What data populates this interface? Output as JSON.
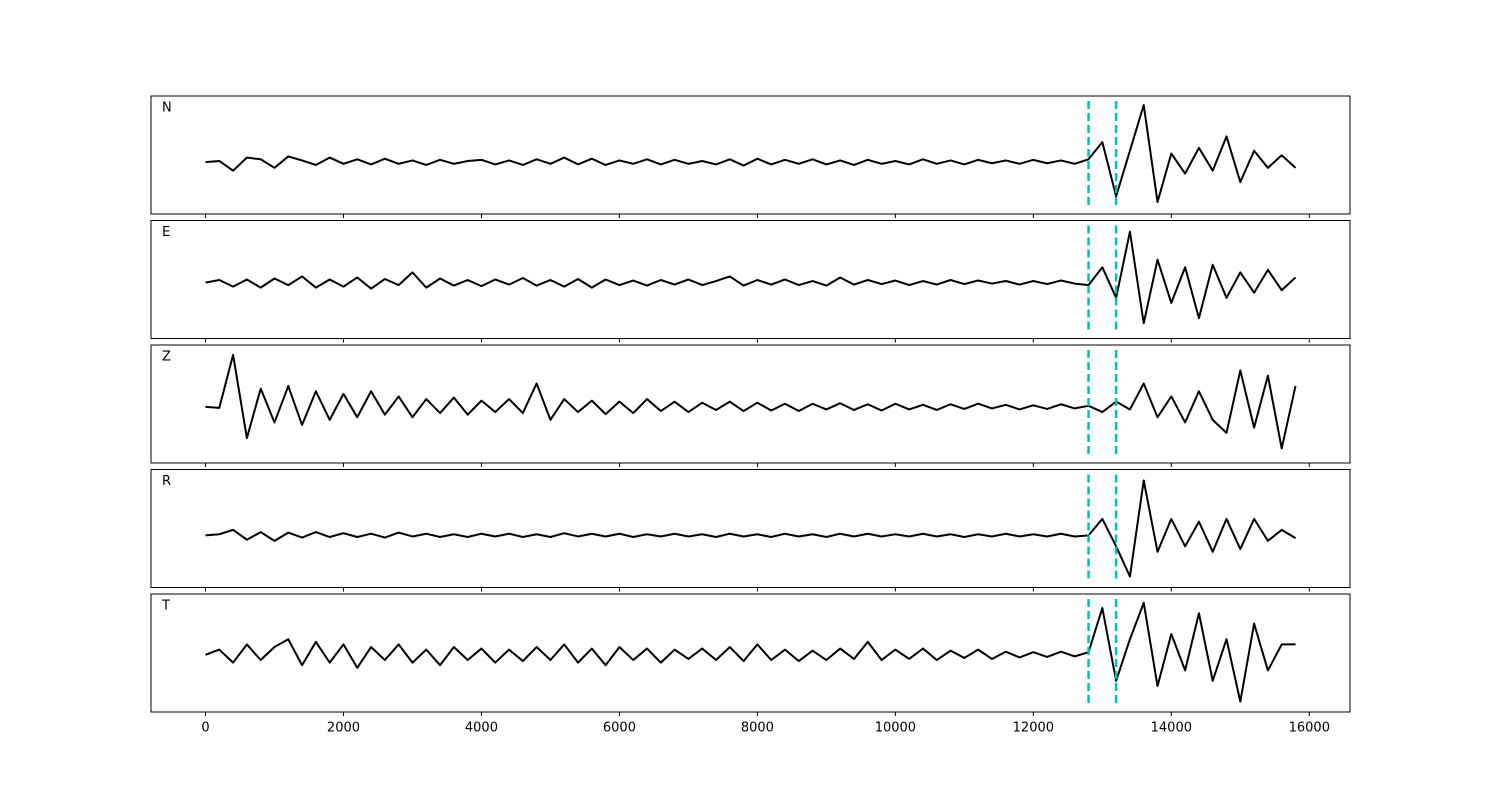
{
  "chart_data": [
    {
      "type": "line",
      "label": "N",
      "color": "#000000",
      "vline_color": "#00bfbf",
      "vlines": [
        12800,
        13200
      ],
      "xlim": [
        -790,
        16590
      ],
      "ylim": [
        -0.91,
        1.16
      ],
      "xticks": [
        0,
        2000,
        4000,
        6000,
        8000,
        10000,
        12000,
        14000,
        16000
      ],
      "x": [
        0,
        200,
        400,
        600,
        800,
        1000,
        1200,
        1400,
        1600,
        1800,
        2000,
        2200,
        2400,
        2600,
        2800,
        3000,
        3200,
        3400,
        3600,
        3800,
        4000,
        4200,
        4400,
        4600,
        4800,
        5000,
        5200,
        5400,
        5600,
        5800,
        6000,
        6200,
        6400,
        6600,
        6800,
        7000,
        7200,
        7400,
        7600,
        7800,
        8000,
        8200,
        8400,
        8600,
        8800,
        9000,
        9200,
        9400,
        9600,
        9800,
        10000,
        10200,
        10400,
        10600,
        10800,
        11000,
        11200,
        11400,
        11600,
        11800,
        12000,
        12200,
        12400,
        12600,
        12800,
        13000,
        13200,
        13400,
        13600,
        13800,
        14000,
        14200,
        14400,
        14600,
        14800,
        15000,
        15200,
        15400,
        15600,
        15800
      ],
      "values": [
        0,
        0.02,
        -0.15,
        0.08,
        0.05,
        -0.1,
        0.1,
        0.03,
        -0.05,
        0.08,
        -0.03,
        0.05,
        -0.04,
        0.06,
        -0.03,
        0.03,
        -0.05,
        0.04,
        -0.03,
        0.02,
        0.04,
        -0.04,
        0.03,
        -0.05,
        0.05,
        -0.03,
        0.08,
        -0.04,
        0.06,
        -0.05,
        0.03,
        -0.03,
        0.05,
        -0.04,
        0.04,
        -0.03,
        0.02,
        -0.04,
        0.05,
        -0.06,
        0.06,
        -0.04,
        0.04,
        -0.03,
        0.05,
        -0.04,
        0.03,
        -0.05,
        0.04,
        -0.03,
        0.02,
        -0.04,
        0.05,
        -0.03,
        0.03,
        -0.04,
        0.04,
        -0.02,
        0.03,
        -0.03,
        0.04,
        -0.02,
        0.03,
        -0.03,
        0.05,
        0.35,
        -0.6,
        0.2,
        1.0,
        -0.7,
        0.15,
        -0.2,
        0.25,
        -0.15,
        0.45,
        -0.35,
        0.2,
        -0.1,
        0.12,
        -0.1
      ]
    },
    {
      "type": "line",
      "label": "E",
      "color": "#000000",
      "vline_color": "#00bfbf",
      "vlines": [
        12800,
        13200
      ],
      "xlim": [
        -790,
        16590
      ],
      "ylim": [
        -1.1,
        1.22
      ],
      "xticks": [
        0,
        2000,
        4000,
        6000,
        8000,
        10000,
        12000,
        14000,
        16000
      ],
      "x": [
        0,
        200,
        400,
        600,
        800,
        1000,
        1200,
        1400,
        1600,
        1800,
        2000,
        2200,
        2400,
        2600,
        2800,
        3000,
        3200,
        3400,
        3600,
        3800,
        4000,
        4200,
        4400,
        4600,
        4800,
        5000,
        5200,
        5400,
        5600,
        5800,
        6000,
        6200,
        6400,
        6600,
        6800,
        7000,
        7200,
        7400,
        7600,
        7800,
        8000,
        8200,
        8400,
        8600,
        8800,
        9000,
        9200,
        9400,
        9600,
        9800,
        10000,
        10200,
        10400,
        10600,
        10800,
        11000,
        11200,
        11400,
        11600,
        11800,
        12000,
        12200,
        12400,
        12600,
        12800,
        13000,
        13200,
        13400,
        13600,
        13800,
        14000,
        14200,
        14400,
        14600,
        14800,
        15000,
        15200,
        15400,
        15600,
        15800
      ],
      "values": [
        0,
        0.05,
        -0.08,
        0.06,
        -0.1,
        0.08,
        -0.05,
        0.12,
        -0.1,
        0.06,
        -0.08,
        0.1,
        -0.12,
        0.07,
        -0.05,
        0.2,
        -0.1,
        0.08,
        -0.06,
        0.05,
        -0.07,
        0.06,
        -0.04,
        0.09,
        -0.06,
        0.05,
        -0.08,
        0.07,
        -0.1,
        0.06,
        -0.05,
        0.04,
        -0.06,
        0.05,
        -0.04,
        0.06,
        -0.05,
        0.03,
        0.12,
        -0.06,
        0.05,
        -0.04,
        0.06,
        -0.05,
        0.03,
        -0.06,
        0.1,
        -0.04,
        0.05,
        -0.03,
        0.04,
        -0.05,
        0.03,
        -0.04,
        0.05,
        -0.03,
        0.04,
        -0.02,
        0.03,
        -0.04,
        0.03,
        -0.03,
        0.04,
        -0.02,
        -0.05,
        0.3,
        -0.3,
        1.0,
        -0.8,
        0.45,
        -0.4,
        0.3,
        -0.7,
        0.35,
        -0.3,
        0.2,
        -0.2,
        0.25,
        -0.15,
        0.1
      ]
    },
    {
      "type": "line",
      "label": "Z",
      "color": "#000000",
      "vline_color": "#00bfbf",
      "vlines": [
        12800,
        13200
      ],
      "xlim": [
        -790,
        16590
      ],
      "ylim": [
        -1.08,
        1.19
      ],
      "xticks": [
        0,
        2000,
        4000,
        6000,
        8000,
        10000,
        12000,
        14000,
        16000
      ],
      "x": [
        0,
        200,
        400,
        600,
        800,
        1000,
        1200,
        1400,
        1600,
        1800,
        2000,
        2200,
        2400,
        2600,
        2800,
        3000,
        3200,
        3400,
        3600,
        3800,
        4000,
        4200,
        4400,
        4600,
        4800,
        5000,
        5200,
        5400,
        5600,
        5800,
        6000,
        6200,
        6400,
        6600,
        6800,
        7000,
        7200,
        7400,
        7600,
        7800,
        8000,
        8200,
        8400,
        8600,
        8800,
        9000,
        9200,
        9400,
        9600,
        9800,
        10000,
        10200,
        10400,
        10600,
        10800,
        11000,
        11200,
        11400,
        11600,
        11800,
        12000,
        12200,
        12400,
        12600,
        12800,
        13000,
        13200,
        13400,
        13600,
        13800,
        14000,
        14200,
        14400,
        14600,
        14800,
        15000,
        15200,
        15400,
        15600,
        15800
      ],
      "values": [
        0,
        -0.02,
        1.0,
        -0.6,
        0.35,
        -0.3,
        0.4,
        -0.35,
        0.3,
        -0.25,
        0.25,
        -0.2,
        0.3,
        -0.15,
        0.2,
        -0.2,
        0.15,
        -0.12,
        0.18,
        -0.15,
        0.12,
        -0.1,
        0.15,
        -0.12,
        0.45,
        -0.25,
        0.15,
        -0.1,
        0.12,
        -0.14,
        0.1,
        -0.12,
        0.15,
        -0.08,
        0.1,
        -0.1,
        0.08,
        -0.06,
        0.1,
        -0.08,
        0.08,
        -0.07,
        0.06,
        -0.08,
        0.06,
        -0.05,
        0.07,
        -0.06,
        0.05,
        -0.07,
        0.06,
        -0.05,
        0.04,
        -0.06,
        0.05,
        -0.04,
        0.06,
        -0.03,
        0.04,
        -0.05,
        0.03,
        -0.04,
        0.05,
        -0.03,
        0.02,
        -0.1,
        0.1,
        -0.05,
        0.45,
        -0.2,
        0.2,
        -0.3,
        0.3,
        -0.25,
        -0.5,
        0.7,
        -0.4,
        0.6,
        -0.8,
        0.4
      ]
    },
    {
      "type": "line",
      "label": "R",
      "color": "#000000",
      "vline_color": "#00bfbf",
      "vlines": [
        12800,
        13200
      ],
      "xlim": [
        -790,
        16590
      ],
      "ylim": [
        -0.95,
        1.2
      ],
      "xticks": [
        0,
        2000,
        4000,
        6000,
        8000,
        10000,
        12000,
        14000,
        16000
      ],
      "x": [
        0,
        200,
        400,
        600,
        800,
        1000,
        1200,
        1400,
        1600,
        1800,
        2000,
        2200,
        2400,
        2600,
        2800,
        3000,
        3200,
        3400,
        3600,
        3800,
        4000,
        4200,
        4400,
        4600,
        4800,
        5000,
        5200,
        5400,
        5600,
        5800,
        6000,
        6200,
        6400,
        6600,
        6800,
        7000,
        7200,
        7400,
        7600,
        7800,
        8000,
        8200,
        8400,
        8600,
        8800,
        9000,
        9200,
        9400,
        9600,
        9800,
        10000,
        10200,
        10400,
        10600,
        10800,
        11000,
        11200,
        11400,
        11600,
        11800,
        12000,
        12200,
        12400,
        12600,
        12800,
        13000,
        13200,
        13400,
        13600,
        13800,
        14000,
        14200,
        14400,
        14600,
        14800,
        15000,
        15200,
        15400,
        15600,
        15800
      ],
      "values": [
        0,
        0.02,
        0.1,
        -0.08,
        0.06,
        -0.1,
        0.05,
        -0.04,
        0.06,
        -0.03,
        0.04,
        -0.03,
        0.03,
        -0.04,
        0.05,
        -0.02,
        0.03,
        -0.03,
        0.02,
        -0.03,
        0.03,
        -0.02,
        0.03,
        -0.03,
        0.02,
        -0.03,
        0.04,
        -0.02,
        0.03,
        -0.02,
        0.03,
        -0.03,
        0.02,
        -0.02,
        0.03,
        -0.02,
        0.02,
        -0.03,
        0.03,
        -0.02,
        0.02,
        -0.03,
        0.03,
        -0.02,
        0.02,
        -0.03,
        0.03,
        -0.02,
        0.03,
        -0.02,
        0.02,
        -0.02,
        0.03,
        -0.02,
        0.02,
        -0.03,
        0.02,
        -0.02,
        0.03,
        -0.02,
        0.02,
        -0.02,
        0.03,
        -0.02,
        0,
        0.3,
        -0.2,
        -0.75,
        1.0,
        -0.3,
        0.3,
        -0.2,
        0.25,
        -0.3,
        0.3,
        -0.25,
        0.3,
        -0.1,
        0.1,
        -0.05
      ]
    },
    {
      "type": "line",
      "label": "T",
      "color": "#000000",
      "vline_color": "#00bfbf",
      "vlines": [
        12800,
        13200
      ],
      "xlim": [
        -790,
        16590
      ],
      "ylim": [
        -1.1,
        1.17
      ],
      "xticks": [
        0,
        2000,
        4000,
        6000,
        8000,
        10000,
        12000,
        14000,
        16000
      ],
      "x": [
        0,
        200,
        400,
        600,
        800,
        1000,
        1200,
        1400,
        1600,
        1800,
        2000,
        2200,
        2400,
        2600,
        2800,
        3000,
        3200,
        3400,
        3600,
        3800,
        4000,
        4200,
        4400,
        4600,
        4800,
        5000,
        5200,
        5400,
        5600,
        5800,
        6000,
        6200,
        6400,
        6600,
        6800,
        7000,
        7200,
        7400,
        7600,
        7800,
        8000,
        8200,
        8400,
        8600,
        8800,
        9000,
        9200,
        9400,
        9600,
        9800,
        10000,
        10200,
        10400,
        10600,
        10800,
        11000,
        11200,
        11400,
        11600,
        11800,
        12000,
        12200,
        12400,
        12600,
        12800,
        13000,
        13200,
        13400,
        13600,
        13800,
        14000,
        14200,
        14400,
        14600,
        14800,
        15000,
        15200,
        15400,
        15600,
        15800
      ],
      "values": [
        0,
        0.1,
        -0.15,
        0.2,
        -0.1,
        0.15,
        0.3,
        -0.2,
        0.25,
        -0.15,
        0.2,
        -0.25,
        0.15,
        -0.1,
        0.2,
        -0.15,
        0.1,
        -0.2,
        0.15,
        -0.1,
        0.12,
        -0.15,
        0.1,
        -0.12,
        0.15,
        -0.1,
        0.2,
        -0.15,
        0.12,
        -0.2,
        0.15,
        -0.1,
        0.12,
        -0.15,
        0.1,
        -0.08,
        0.12,
        -0.1,
        0.15,
        -0.12,
        0.2,
        -0.1,
        0.1,
        -0.12,
        0.08,
        -0.1,
        0.12,
        -0.08,
        0.25,
        -0.1,
        0.1,
        -0.08,
        0.12,
        -0.1,
        0.08,
        -0.06,
        0.1,
        -0.08,
        0.06,
        -0.05,
        0.05,
        -0.04,
        0.06,
        -0.03,
        0.05,
        0.9,
        -0.5,
        0.3,
        1.0,
        -0.6,
        0.4,
        -0.3,
        0.8,
        -0.5,
        0.3,
        -0.9,
        0.6,
        -0.3,
        0.2,
        0.2
      ]
    }
  ]
}
